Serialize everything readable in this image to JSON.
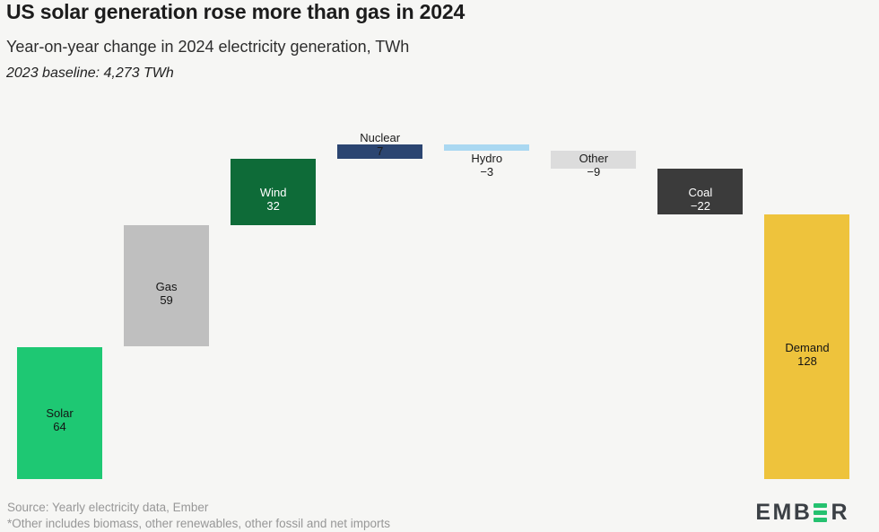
{
  "header": {
    "title": "US solar generation rose more than gas in 2024",
    "subtitle": "Year-on-year change in 2024 electricity generation, TWh",
    "baseline_note": "2023 baseline: 4,273 TWh"
  },
  "chart_data": {
    "type": "waterfall",
    "title": "US solar generation rose more than gas in 2024",
    "subtitle": "Year-on-year change in 2024 electricity generation, TWh",
    "unit": "TWh",
    "baseline_2023_twh": "4,273",
    "categories": [
      "Solar",
      "Gas",
      "Wind",
      "Nuclear",
      "Hydro",
      "Other",
      "Coal",
      "Demand"
    ],
    "values": [
      64,
      59,
      32,
      7,
      -3,
      -9,
      -22,
      128
    ],
    "grid": false,
    "axes_visible": false,
    "ylim": [
      0,
      160
    ],
    "bars": [
      {
        "label": "Solar",
        "value": 64,
        "display": "64",
        "kind": "delta",
        "color": "#1ec873",
        "text_color": "#141414",
        "label_pos": "center"
      },
      {
        "label": "Gas",
        "value": 59,
        "display": "59",
        "kind": "delta",
        "color": "#bfbfbf",
        "text_color": "#141414",
        "label_pos": "center"
      },
      {
        "label": "Wind",
        "value": 32,
        "display": "32",
        "kind": "delta",
        "color": "#0e6b38",
        "text_color": "#ffffff",
        "label_pos": "center"
      },
      {
        "label": "Nuclear",
        "value": 7,
        "display": "7",
        "kind": "delta",
        "color": "#2b4571",
        "text_color": "#1a1a1a",
        "label_pos": "top"
      },
      {
        "label": "Hydro",
        "value": -3,
        "display": "−3",
        "kind": "delta",
        "color": "#aad8f1",
        "text_color": "#1a1a1a",
        "label_pos": "below"
      },
      {
        "label": "Other",
        "value": -9,
        "display": "−9",
        "kind": "delta",
        "color": "#dcdcdc",
        "text_color": "#1a1a1a",
        "label_pos": "bottom"
      },
      {
        "label": "Coal",
        "value": -22,
        "display": "−22",
        "kind": "delta",
        "color": "#3b3b3b",
        "text_color": "#ffffff",
        "label_pos": "center"
      },
      {
        "label": "Demand",
        "value": 128,
        "display": "128",
        "kind": "total",
        "color": "#eec33c",
        "text_color": "#141414",
        "label_pos": "center"
      }
    ]
  },
  "footer": {
    "source": "Source: Yearly electricity data, Ember",
    "note": "*Other includes biomass, other renewables, other fossil and net imports",
    "logo_text_left": "EMB",
    "logo_text_right": "R"
  },
  "colors": {
    "background": "#f6f6f4",
    "title": "#1c1c1c",
    "subtitle": "#2d2d2d",
    "footer_text": "#979797",
    "logo_dark": "#3b4045",
    "logo_green": "#25c16f"
  }
}
